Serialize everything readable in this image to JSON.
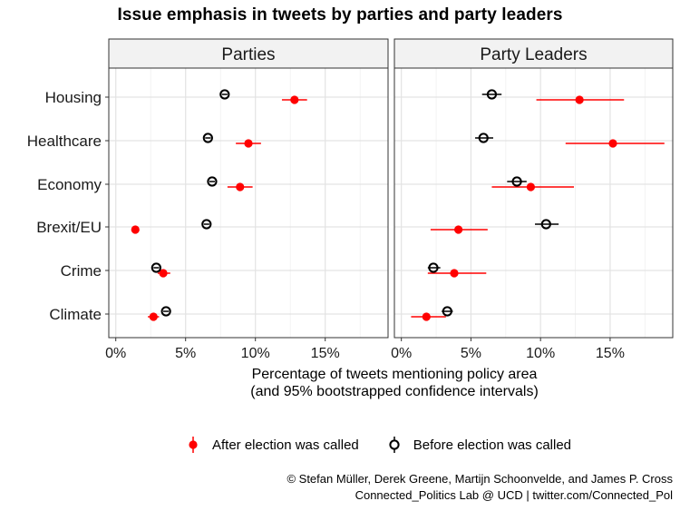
{
  "chart_data": {
    "type": "dotplot",
    "title": "Issue emphasis in tweets by parties and party leaders",
    "xlabel_line1": "Percentage of tweets mentioning policy area",
    "xlabel_line2": "(and 95% bootstrapped confidence intervals)",
    "x_ticks": [
      "0%",
      "5%",
      "10%",
      "15%"
    ],
    "xlim": [
      -0.5,
      19.5
    ],
    "categories": [
      "Housing",
      "Healthcare",
      "Economy",
      "Brexit/EU",
      "Crime",
      "Climate"
    ],
    "legend": [
      {
        "name": "After election was called",
        "color": "#ff0000"
      },
      {
        "name": "Before election was called",
        "color": "#000000"
      }
    ],
    "panels": [
      {
        "name": "Parties",
        "series": [
          {
            "name": "After election was called",
            "values": [
              12.8,
              9.5,
              8.9,
              1.4,
              3.4,
              2.7
            ],
            "ci_low": [
              11.9,
              8.6,
              8.0,
              1.2,
              3.0,
              2.3
            ],
            "ci_high": [
              13.7,
              10.4,
              9.8,
              1.6,
              3.9,
              3.1
            ]
          },
          {
            "name": "Before election was called",
            "values": [
              7.8,
              6.6,
              6.9,
              6.5,
              2.9,
              3.6
            ],
            "ci_low": [
              7.6,
              6.4,
              6.7,
              6.3,
              2.7,
              3.4
            ],
            "ci_high": [
              8.0,
              6.8,
              7.1,
              6.7,
              3.1,
              3.8
            ]
          }
        ]
      },
      {
        "name": "Party Leaders",
        "series": [
          {
            "name": "After election was called",
            "values": [
              12.8,
              15.2,
              9.3,
              4.1,
              3.8,
              1.8
            ],
            "ci_low": [
              9.7,
              11.8,
              6.5,
              2.1,
              1.9,
              0.7
            ],
            "ci_high": [
              16.0,
              18.9,
              12.4,
              6.2,
              6.1,
              3.2
            ]
          },
          {
            "name": "Before election was called",
            "values": [
              6.5,
              5.9,
              8.3,
              10.4,
              2.3,
              3.3
            ],
            "ci_low": [
              5.8,
              5.3,
              7.6,
              9.6,
              1.9,
              2.9
            ],
            "ci_high": [
              7.2,
              6.6,
              9.0,
              11.3,
              2.8,
              3.7
            ]
          }
        ]
      }
    ]
  },
  "credits": {
    "line1": "© Stefan Müller, Derek Greene, Martijn Schoonvelde, and James P. Cross",
    "line2": "Connected_Politics Lab @ UCD | twitter.com/Connected_Pol"
  }
}
